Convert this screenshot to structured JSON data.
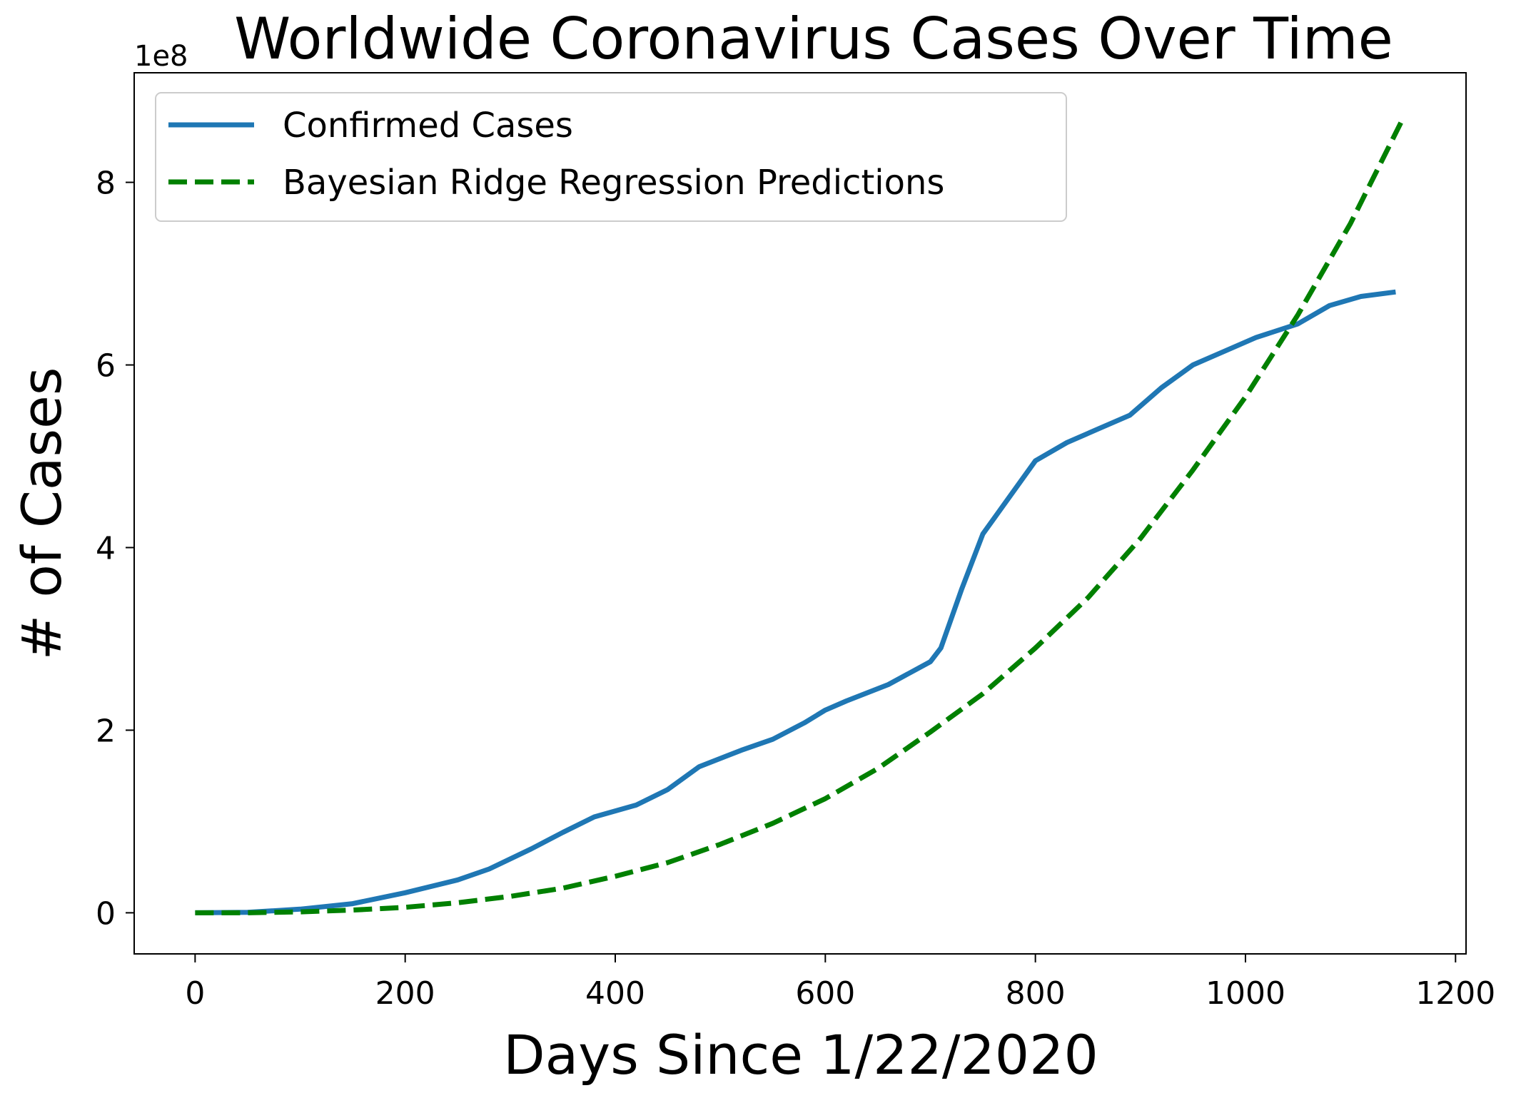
{
  "chart_data": {
    "type": "line",
    "title": "Worldwide Coronavirus Cases Over Time",
    "xlabel": "Days Since 1/22/2020",
    "ylabel": "# of Cases",
    "y_offset_label": "1e8",
    "y_scale_multiplier": 100000000,
    "xlim": [
      -58,
      1210
    ],
    "ylim": [
      -0.45,
      9.2
    ],
    "x_ticks": [
      0,
      200,
      400,
      600,
      800,
      1000,
      1200
    ],
    "x_tick_labels": [
      "0",
      "200",
      "400",
      "600",
      "800",
      "1000",
      "1200"
    ],
    "y_ticks": [
      0,
      2,
      4,
      6,
      8
    ],
    "y_tick_labels": [
      "0",
      "2",
      "4",
      "6",
      "8"
    ],
    "grid": false,
    "legend_position": "top-left",
    "series": [
      {
        "name": "Confirmed Cases",
        "style": "solid",
        "color": "#1f77b4",
        "x": [
          0,
          50,
          100,
          150,
          200,
          250,
          280,
          320,
          350,
          380,
          420,
          450,
          480,
          520,
          550,
          580,
          600,
          620,
          660,
          700,
          710,
          730,
          750,
          775,
          800,
          830,
          860,
          890,
          920,
          950,
          980,
          1010,
          1050,
          1080,
          1110,
          1143
        ],
        "y": [
          0.0,
          0.005,
          0.04,
          0.1,
          0.22,
          0.36,
          0.48,
          0.7,
          0.88,
          1.05,
          1.18,
          1.35,
          1.6,
          1.78,
          1.9,
          2.08,
          2.22,
          2.32,
          2.5,
          2.75,
          2.9,
          3.55,
          4.15,
          4.55,
          4.95,
          5.15,
          5.3,
          5.45,
          5.75,
          6.0,
          6.15,
          6.3,
          6.45,
          6.65,
          6.75,
          6.8
        ]
      },
      {
        "name": "Bayesian Ridge Regression Predictions",
        "style": "dashed",
        "color": "#008000",
        "x": [
          0,
          50,
          100,
          150,
          200,
          250,
          300,
          350,
          400,
          450,
          500,
          550,
          600,
          650,
          700,
          750,
          800,
          850,
          900,
          950,
          1000,
          1050,
          1100,
          1150
        ],
        "y": [
          0.0,
          0.0,
          0.01,
          0.03,
          0.06,
          0.11,
          0.18,
          0.27,
          0.4,
          0.55,
          0.75,
          0.98,
          1.25,
          1.58,
          1.98,
          2.4,
          2.9,
          3.45,
          4.1,
          4.85,
          5.65,
          6.55,
          7.55,
          8.7
        ]
      }
    ]
  }
}
